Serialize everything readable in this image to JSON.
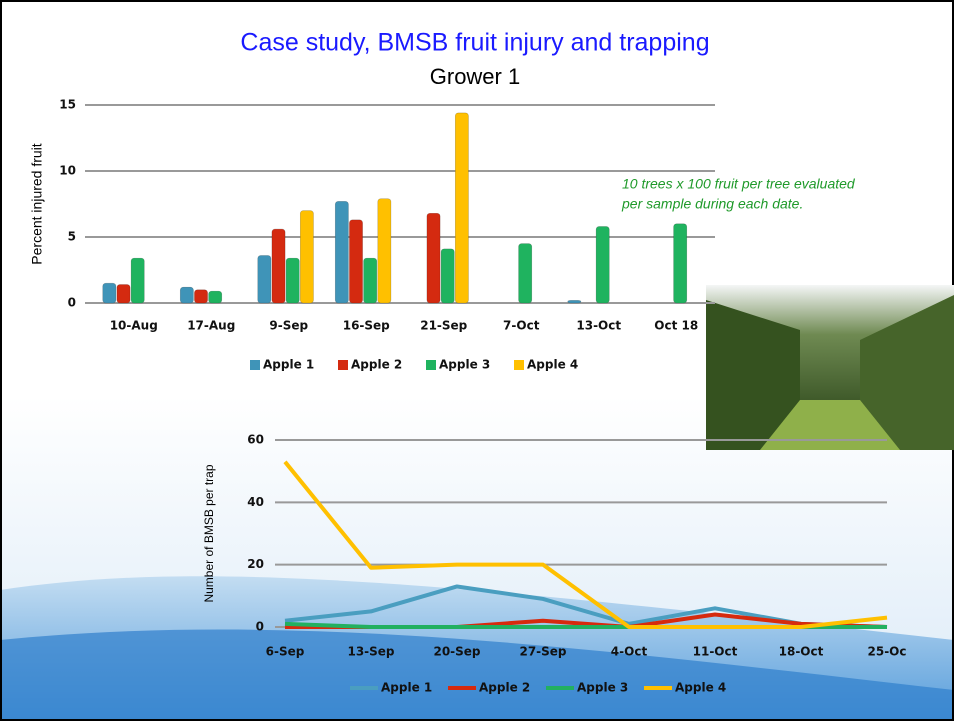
{
  "slide": {
    "title": "Case study, BMSB fruit injury and trapping",
    "subtitle": "Grower 1",
    "annotation": [
      "10 trees x 100 fruit per tree evaluated",
      "per sample during each date."
    ]
  },
  "chart_data": [
    {
      "type": "bar",
      "ylabel": "Percent injured fruit",
      "categories": [
        "10-Aug",
        "17-Aug",
        "9-Sep",
        "16-Sep",
        "21-Sep",
        "7-Oct",
        "13-Oct",
        "Oct 18"
      ],
      "series": [
        {
          "name": "Apple 1",
          "color": "#3f94b8",
          "values": [
            1.5,
            1.2,
            3.6,
            7.7,
            null,
            null,
            0.2,
            null
          ]
        },
        {
          "name": "Apple 2",
          "color": "#d42a10",
          "values": [
            1.4,
            1.0,
            5.6,
            6.3,
            6.8,
            null,
            null,
            null
          ]
        },
        {
          "name": "Apple 3",
          "color": "#1fb35f",
          "values": [
            3.4,
            0.9,
            3.4,
            3.4,
            4.1,
            4.5,
            5.8,
            6.0
          ]
        },
        {
          "name": "Apple 4",
          "color": "#ffc000",
          "values": [
            null,
            null,
            7.0,
            7.9,
            14.4,
            null,
            null,
            null
          ]
        }
      ],
      "ylim": [
        0,
        15
      ],
      "yticks": [
        0,
        5,
        10,
        15
      ],
      "grid": true,
      "legend": "bottom"
    },
    {
      "type": "line",
      "ylabel": "Number of BMSB per trap",
      "categories": [
        "6-Sep",
        "13-Sep",
        "20-Sep",
        "27-Sep",
        "4-Oct",
        "11-Oct",
        "18-Oct",
        "25-Oc"
      ],
      "series": [
        {
          "name": "Apple 1",
          "color": "#4a9ec0",
          "values": [
            2,
            5,
            13,
            9,
            1,
            6,
            1,
            0
          ]
        },
        {
          "name": "Apple 2",
          "color": "#d62a0e",
          "values": [
            0,
            0,
            0,
            2,
            0,
            4,
            1,
            0
          ]
        },
        {
          "name": "Apple 3",
          "color": "#22b060",
          "values": [
            1,
            0,
            0,
            0,
            0,
            0,
            0,
            0
          ]
        },
        {
          "name": "Apple 4",
          "color": "#ffc000",
          "values": [
            53,
            19,
            20,
            20,
            0,
            0,
            0,
            3
          ]
        }
      ],
      "ylim": [
        0,
        60
      ],
      "yticks": [
        0,
        20,
        40,
        60
      ],
      "grid": true,
      "legend": "bottom"
    }
  ]
}
